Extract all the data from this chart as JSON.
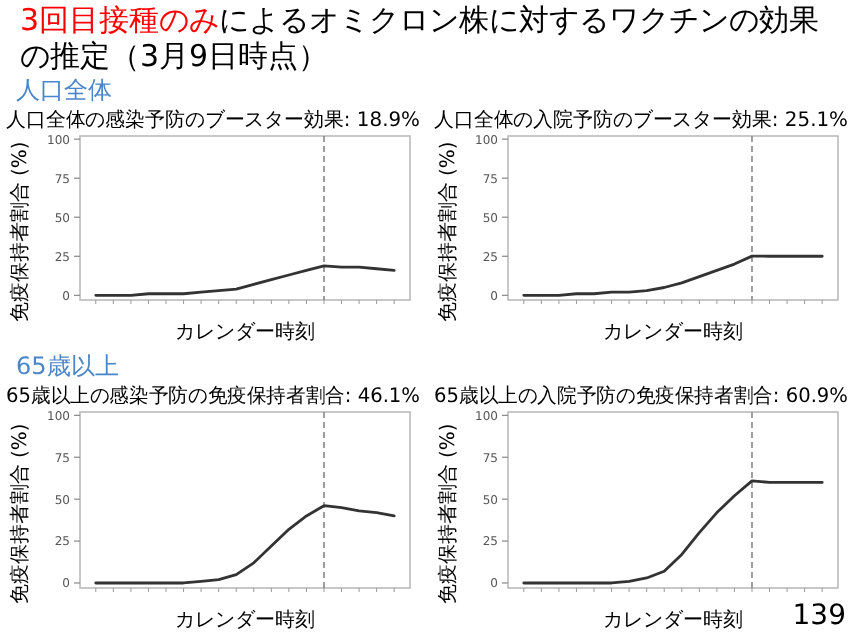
{
  "chart_data": [
    {
      "type": "other",
      "title": "3回目接種のみ",
      "subtitle": "によるオミクロン株に対するワクチンの効果の推定（3月9日時点）",
      "annotations": [
        "人口全体",
        "65歳以上",
        "139"
      ]
    },
    {
      "type": "line",
      "title": "人口全体の感染予防のブースター効果: 18.9%",
      "xlabel": "カレンダー時刻",
      "ylabel": "免疫保持者割合 (%)",
      "color": "#333333",
      "categories": [
        null,
        null,
        null,
        null,
        null,
        null,
        null,
        null,
        null,
        null,
        null,
        null,
        null,
        null,
        null,
        null,
        null,
        null
      ],
      "values": [
        0,
        0,
        0,
        1,
        1,
        1,
        2,
        3,
        4,
        7,
        10,
        13,
        16,
        18.9,
        18,
        18,
        17,
        16
      ],
      "ylim": [
        -3,
        102
      ],
      "yticks": [
        0,
        25,
        50,
        75,
        100
      ]
    },
    {
      "type": "line",
      "title": "人口全体の入院予防のブースター効果: 25.1%",
      "xlabel": "カレンダー時刻",
      "ylabel": "免疫保持者割合 (%)",
      "color": "#333333",
      "categories": [
        null,
        null,
        null,
        null,
        null,
        null,
        null,
        null,
        null,
        null,
        null,
        null,
        null,
        null,
        null,
        null,
        null,
        null
      ],
      "values": [
        0,
        0,
        0,
        1,
        1,
        2,
        2,
        3,
        5,
        8,
        12,
        16,
        20,
        25.1,
        25,
        25,
        25,
        25
      ],
      "ylim": [
        -3,
        102
      ],
      "yticks": [
        0,
        25,
        50,
        75,
        100
      ]
    },
    {
      "type": "line",
      "title": "65歳以上の感染予防の免疫保持者割合: 46.1%",
      "xlabel": "カレンダー時刻",
      "ylabel": "免疫保持者割合 (%)",
      "color": "#333333",
      "categories": [
        null,
        null,
        null,
        null,
        null,
        null,
        null,
        null,
        null,
        null,
        null,
        null,
        null,
        null,
        null,
        null,
        null,
        null
      ],
      "values": [
        0,
        0,
        0,
        0,
        0,
        0,
        1,
        2,
        5,
        12,
        22,
        32,
        40,
        46.1,
        45,
        43,
        42,
        40
      ],
      "ylim": [
        -3,
        102
      ],
      "yticks": [
        0,
        25,
        50,
        75,
        100
      ]
    },
    {
      "type": "line",
      "title": "65歳以上の入院予防の免疫保持者割合: 60.9%",
      "xlabel": "カレンダー時刻",
      "ylabel": "免疫保持者割合 (%)",
      "color": "#333333",
      "categories": [
        null,
        null,
        null,
        null,
        null,
        null,
        null,
        null,
        null,
        null,
        null,
        null,
        null,
        null,
        null,
        null,
        null,
        null
      ],
      "values": [
        0,
        0,
        0,
        0,
        0,
        0,
        1,
        3,
        7,
        17,
        30,
        42,
        52,
        60.9,
        60,
        60,
        60,
        60
      ],
      "ylim": [
        -3,
        102
      ],
      "yticks": [
        0,
        25,
        50,
        75,
        100
      ]
    }
  ]
}
